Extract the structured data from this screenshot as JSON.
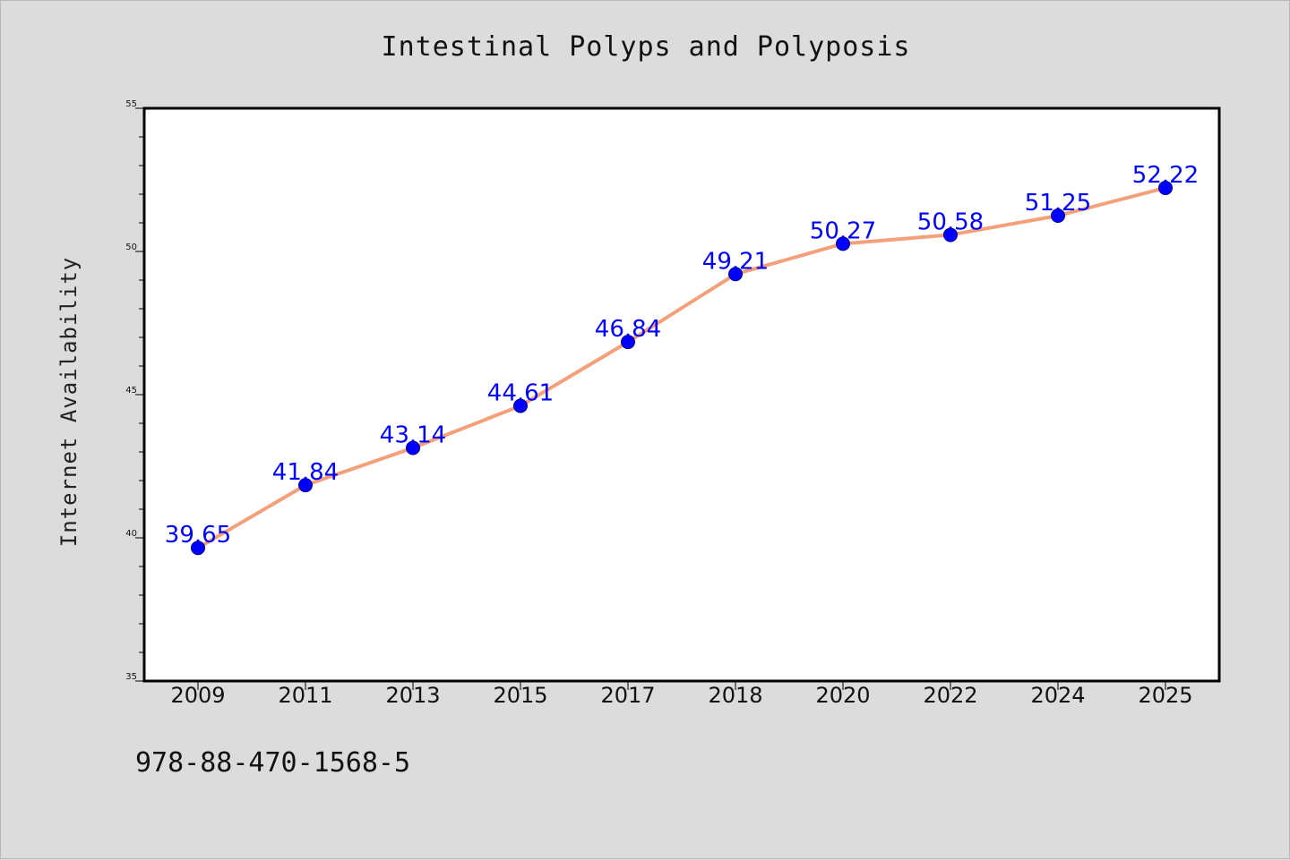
{
  "chart_data": {
    "type": "line",
    "title": "Intestinal Polyps and Polyposis",
    "xlabel": "",
    "ylabel": "Internet Availability",
    "categories": [
      "2009",
      "2011",
      "2013",
      "2015",
      "2017",
      "2018",
      "2020",
      "2022",
      "2024",
      "2025"
    ],
    "series": [
      {
        "values": [
          39.65,
          41.84,
          43.14,
          44.61,
          46.84,
          49.21,
          50.27,
          50.58,
          51.25,
          52.22
        ],
        "data_labels": [
          "39.65",
          "41.84",
          "43.14",
          "44.61",
          "46.84",
          "49.21",
          "50.27",
          "50.58",
          "51.25",
          "52.22"
        ],
        "line_color": "#f4a07a",
        "marker_color": "#0000ff"
      }
    ],
    "ylim": [
      35,
      55
    ],
    "yticks": [
      "35",
      "40",
      "45",
      "50",
      "55"
    ],
    "yminor_step": 1,
    "grid": false,
    "legend": "none"
  },
  "annotation": {
    "code": "978-88-470-1568-5"
  },
  "colors": {
    "background": "#dcdcdc",
    "plot_background": "#ffffff",
    "label_color": "#0000ff"
  }
}
